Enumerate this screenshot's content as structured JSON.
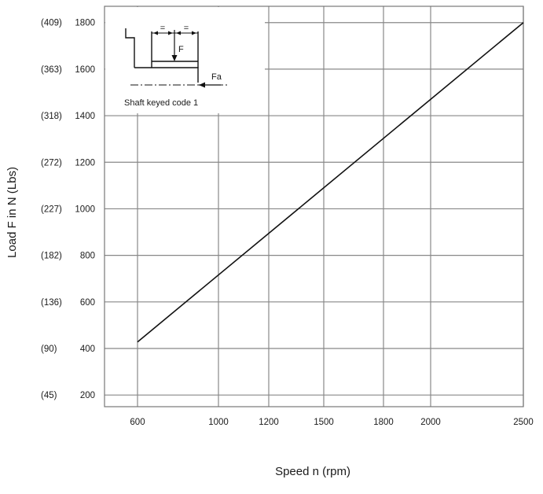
{
  "chart_data": {
    "type": "line",
    "xlabel": "Speed n (rpm)",
    "ylabel": "Load F in N (Lbs)",
    "x_ticks": [
      {
        "value": 600,
        "label": "600"
      },
      {
        "value": 1000,
        "label": "1000"
      },
      {
        "value": 1200,
        "label": "1200"
      },
      {
        "value": 1500,
        "label": "1500"
      },
      {
        "value": 1800,
        "label": "1800"
      },
      {
        "value": 2000,
        "label": "2000"
      },
      {
        "value": 2500,
        "label": "2500"
      }
    ],
    "y_ticks": [
      {
        "value": 200,
        "label": "200",
        "lbs": "(45)"
      },
      {
        "value": 400,
        "label": "400",
        "lbs": "(90)"
      },
      {
        "value": 600,
        "label": "600",
        "lbs": "(136)"
      },
      {
        "value": 800,
        "label": "800",
        "lbs": "(182)"
      },
      {
        "value": 1000,
        "label": "1000",
        "lbs": "(227)"
      },
      {
        "value": 1200,
        "label": "1200",
        "lbs": "(272)"
      },
      {
        "value": 1400,
        "label": "1400",
        "lbs": "(318)"
      },
      {
        "value": 1600,
        "label": "1600",
        "lbs": "(363)"
      },
      {
        "value": 1800,
        "label": "1800",
        "lbs": "(409)"
      }
    ],
    "ylim": [
      150,
      1870
    ],
    "grid": true,
    "series": [
      {
        "x": [
          600,
          2500
        ],
        "y": [
          428,
          1800
        ],
        "color": "#111111"
      }
    ],
    "inset": {
      "caption": "Shaft keyed code 1",
      "force_label": "F",
      "axial_label": "Fa",
      "equal_mark": "="
    }
  }
}
